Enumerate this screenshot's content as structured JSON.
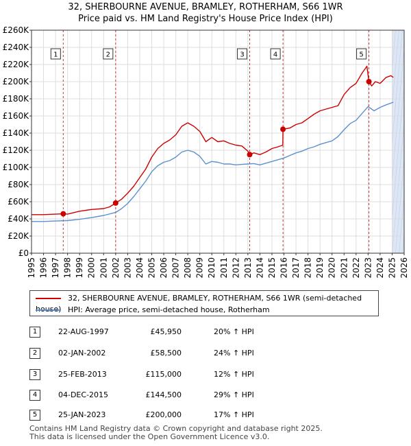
{
  "title_line1": "32, SHERBOURNE AVENUE, BRAMLEY, ROTHERHAM, S66 1WR",
  "title_line2": "Price paid vs. HM Land Registry's House Price Index (HPI)",
  "legend": {
    "series1": "32, SHERBOURNE AVENUE, BRAMLEY, ROTHERHAM, S66 1WR (semi-detached house)",
    "series2": "HPI: Average price, semi-detached house, Rotherham"
  },
  "colors": {
    "property": "#cc0000",
    "hpi": "#5b8fd0",
    "shade": "#dde6f5",
    "marker_line": "#cc3333"
  },
  "sales": [
    {
      "num": "1",
      "date": "22-AUG-1997",
      "price": "£45,950",
      "hpi": "20% ↑ HPI"
    },
    {
      "num": "2",
      "date": "02-JAN-2002",
      "price": "£58,500",
      "hpi": "24% ↑ HPI"
    },
    {
      "num": "3",
      "date": "25-FEB-2013",
      "price": "£115,000",
      "hpi": "12% ↑ HPI"
    },
    {
      "num": "4",
      "date": "04-DEC-2015",
      "price": "£144,500",
      "hpi": "29% ↑ HPI"
    },
    {
      "num": "5",
      "date": "25-JAN-2023",
      "price": "£200,000",
      "hpi": "17% ↑ HPI"
    }
  ],
  "footer": {
    "line1": "Contains HM Land Registry data © Crown copyright and database right 2025.",
    "line2": "This data is licensed under the Open Government Licence v3.0."
  },
  "chart_data": {
    "type": "line",
    "xlim": [
      1995,
      2026
    ],
    "ylim": [
      0,
      260000
    ],
    "y_ticks": [
      0,
      20000,
      40000,
      60000,
      80000,
      100000,
      120000,
      140000,
      160000,
      180000,
      200000,
      220000,
      240000,
      260000
    ],
    "y_tick_labels": [
      "£0",
      "£20K",
      "£40K",
      "£60K",
      "£80K",
      "£100K",
      "£120K",
      "£140K",
      "£160K",
      "£180K",
      "£200K",
      "£220K",
      "£240K",
      "£260K"
    ],
    "x_ticks": [
      1995,
      1996,
      1997,
      1998,
      1999,
      2000,
      2001,
      2002,
      2003,
      2004,
      2005,
      2006,
      2007,
      2008,
      2009,
      2010,
      2011,
      2012,
      2013,
      2014,
      2015,
      2016,
      2017,
      2018,
      2019,
      2020,
      2021,
      2022,
      2023,
      2024,
      2025,
      2026
    ],
    "grid": true,
    "shaded_region": [
      2025.0,
      2026.0
    ],
    "sale_markers": [
      {
        "label": "1",
        "x": 1997.64,
        "y": 45950
      },
      {
        "label": "2",
        "x": 2002.0,
        "y": 58500
      },
      {
        "label": "3",
        "x": 2013.15,
        "y": 115000
      },
      {
        "label": "4",
        "x": 2015.92,
        "y": 144500
      },
      {
        "label": "5",
        "x": 2023.07,
        "y": 200000
      }
    ],
    "series": [
      {
        "name": "32, SHERBOURNE AVENUE, BRAMLEY, ROTHERHAM, S66 1WR (semi-detached house)",
        "x": [
          1995.0,
          1996.0,
          1997.0,
          1997.64,
          1998.0,
          1999.0,
          2000.0,
          2001.0,
          2001.5,
          2002.0,
          2002.5,
          2003.0,
          2003.5,
          2004.0,
          2004.5,
          2005.0,
          2005.5,
          2006.0,
          2006.5,
          2007.0,
          2007.5,
          2008.0,
          2008.5,
          2009.0,
          2009.5,
          2010.0,
          2010.5,
          2011.0,
          2011.5,
          2012.0,
          2012.5,
          2013.0,
          2013.15,
          2013.5,
          2014.0,
          2014.5,
          2015.0,
          2015.5,
          2015.9,
          2015.92,
          2016.5,
          2017.0,
          2017.5,
          2018.0,
          2018.5,
          2019.0,
          2019.5,
          2020.0,
          2020.5,
          2021.0,
          2021.5,
          2022.0,
          2022.5,
          2022.9,
          2023.07,
          2023.3,
          2023.6,
          2024.0,
          2024.5,
          2024.9,
          2025.1
        ],
        "y": [
          45000,
          45000,
          45500,
          45950,
          45500,
          49000,
          51000,
          52000,
          54000,
          58500,
          63000,
          70000,
          78000,
          88000,
          98000,
          112000,
          122000,
          128000,
          132000,
          138000,
          148000,
          152000,
          148000,
          142000,
          130000,
          135000,
          130000,
          131000,
          128000,
          126000,
          125000,
          119000,
          115000,
          117000,
          115000,
          118000,
          122000,
          124000,
          126000,
          144500,
          146000,
          150000,
          152000,
          157000,
          162000,
          166000,
          168000,
          170000,
          172000,
          185000,
          193000,
          198000,
          210000,
          218000,
          200000,
          195000,
          200000,
          198000,
          205000,
          207000,
          205000
        ]
      },
      {
        "name": "HPI: Average price, semi-detached house, Rotherham",
        "x": [
          1995.0,
          1996.0,
          1997.0,
          1998.0,
          1999.0,
          2000.0,
          2001.0,
          2002.0,
          2002.5,
          2003.0,
          2003.5,
          2004.0,
          2004.5,
          2005.0,
          2005.5,
          2006.0,
          2006.5,
          2007.0,
          2007.5,
          2008.0,
          2008.5,
          2009.0,
          2009.5,
          2010.0,
          2010.5,
          2011.0,
          2011.5,
          2012.0,
          2012.5,
          2013.0,
          2013.5,
          2014.0,
          2014.5,
          2015.0,
          2015.5,
          2016.0,
          2016.5,
          2017.0,
          2017.5,
          2018.0,
          2018.5,
          2019.0,
          2019.5,
          2020.0,
          2020.5,
          2021.0,
          2021.5,
          2022.0,
          2022.5,
          2023.0,
          2023.5,
          2024.0,
          2024.5,
          2025.1
        ],
        "y": [
          37000,
          37000,
          37500,
          38000,
          39500,
          41500,
          44000,
          47500,
          52000,
          58000,
          66000,
          75000,
          84000,
          95000,
          102000,
          106000,
          108000,
          112000,
          118000,
          120000,
          118000,
          113000,
          104000,
          107000,
          106000,
          104000,
          104000,
          103000,
          103500,
          104000,
          104500,
          103000,
          105000,
          107000,
          109000,
          111000,
          114000,
          117000,
          119000,
          122000,
          124000,
          127000,
          129000,
          131000,
          136000,
          144000,
          151000,
          155000,
          163000,
          171000,
          166000,
          170000,
          173000,
          176000
        ]
      }
    ]
  }
}
